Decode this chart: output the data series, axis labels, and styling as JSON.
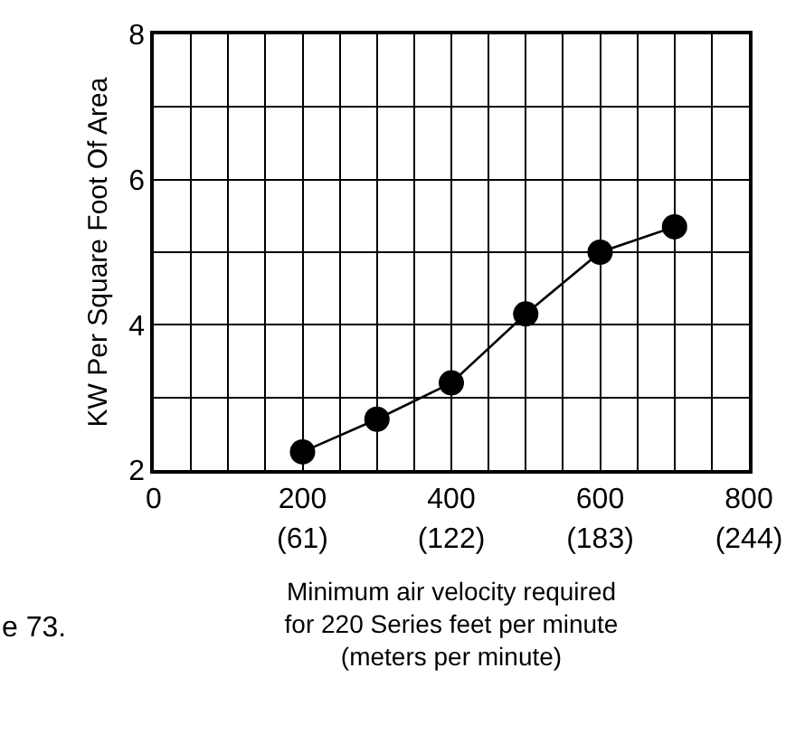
{
  "chart_data": {
    "type": "line",
    "xlabel": "Minimum air velocity required\nfor 220 Series feet per minute\n(meters per minute)",
    "ylabel": "KW Per Square Foot Of Area",
    "annotations": [
      "e 73."
    ],
    "x": [
      200,
      300,
      400,
      500,
      600,
      700
    ],
    "series": [
      {
        "color": "#000000",
        "values": [
          2.25,
          2.7,
          3.2,
          4.15,
          5.0,
          5.35
        ]
      }
    ],
    "marker": "circle",
    "line_style": "solid",
    "grid": true,
    "xlim": [
      0,
      800
    ],
    "xticks": [
      0,
      {
        "value": 50,
        "label": null
      },
      {
        "value": 100,
        "label": null
      },
      {
        "value": 150,
        "label": null
      },
      200,
      {
        "value": 250,
        "label": null
      },
      {
        "value": 300,
        "label": null
      },
      {
        "value": 350,
        "label": null
      },
      400,
      {
        "value": 450,
        "label": null
      },
      {
        "value": 500,
        "label": null
      },
      {
        "value": 550,
        "label": null
      },
      600,
      {
        "value": 650,
        "label": null
      },
      {
        "value": 700,
        "label": null
      },
      {
        "value": 750,
        "label": null
      },
      800
    ],
    "x2lim": [
      0,
      244
    ],
    "x2ticks": [
      {
        "value": 61,
        "label": "(61)"
      },
      {
        "value": 122,
        "label": "(122)"
      },
      {
        "value": 183,
        "label": "(183)"
      },
      {
        "value": 244,
        "label": "(244)"
      }
    ],
    "ylim": [
      2,
      8
    ],
    "yticks": [
      2,
      {
        "value": 3,
        "label": null
      },
      4,
      {
        "value": 5,
        "label": null
      },
      6,
      {
        "value": 7,
        "label": null
      },
      8
    ]
  }
}
